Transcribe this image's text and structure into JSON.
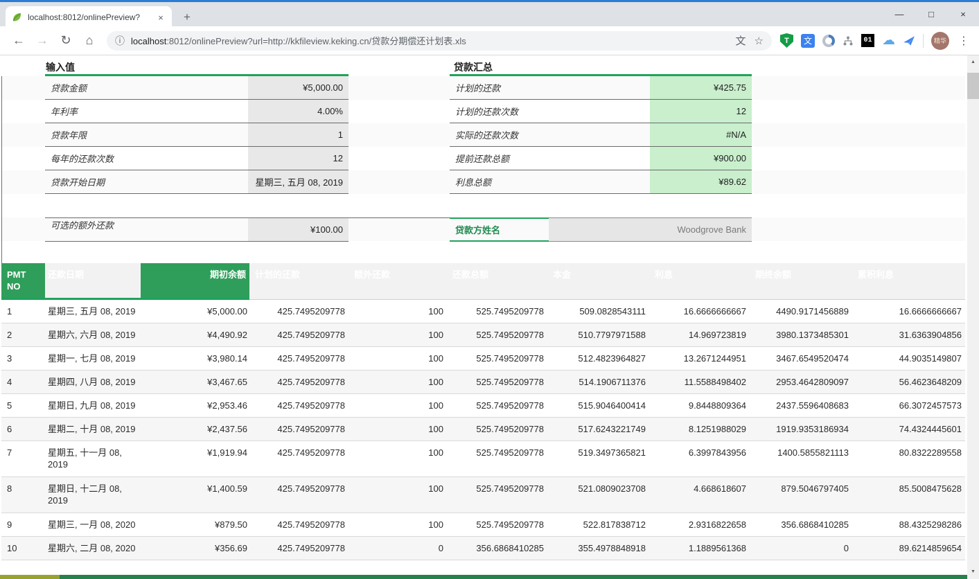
{
  "window": {
    "tab_title": "localhost:8012/onlinePreview?",
    "icons": {
      "new_tab": "+",
      "tab_close": "×",
      "minimize": "—",
      "maximize": "□",
      "close": "×"
    }
  },
  "toolbar": {
    "icons": {
      "back": "←",
      "forward": "→",
      "refresh": "↻",
      "home": "⌂",
      "info": "ⓘ",
      "translate_page": "文",
      "star": "☆",
      "shield": "T",
      "translate_ext": "文",
      "counter": "01",
      "cloud": "☁",
      "menu": "⋮",
      "scroll_up": "▲",
      "scroll_down": "▼"
    },
    "url_host": "localhost",
    "url_rest": ":8012/onlinePreview?url=http://kkfileview.keking.cn/贷款分期偿还计划表.xls",
    "avatar_label": "精华"
  },
  "summary_left": {
    "title": "输入值",
    "rows": [
      {
        "label": "贷款金额",
        "value": "¥5,000.00"
      },
      {
        "label": "年利率",
        "value": "4.00%"
      },
      {
        "label": "贷款年限",
        "value": "1"
      },
      {
        "label": "每年的还款次数",
        "value": "12"
      },
      {
        "label": "贷款开始日期",
        "value": "星期三, 五月 08, 2019"
      }
    ],
    "extra": {
      "label": "可选的额外还款",
      "value": "¥100.00"
    }
  },
  "summary_right": {
    "title": "贷款汇总",
    "rows": [
      {
        "label": "计划的还款",
        "value": "¥425.75"
      },
      {
        "label": "计划的还款次数",
        "value": "12"
      },
      {
        "label": "实际的还款次数",
        "value": "#N/A"
      },
      {
        "label": "提前还款总额",
        "value": "¥900.00"
      },
      {
        "label": "利息总额",
        "value": "¥89.62"
      }
    ],
    "lender": {
      "label": "贷款方姓名",
      "value": "Woodgrove Bank"
    }
  },
  "schedule": {
    "headers": [
      "PMT NO",
      "还款日期",
      "期初余额",
      "计划的还款",
      "额外还款",
      "还款总额",
      "本金",
      "利息",
      "期终余额",
      "累积利息"
    ],
    "rows": [
      [
        "1",
        "星期三, 五月 08, 2019",
        "¥5,000.00",
        "425.7495209778",
        "100",
        "525.7495209778",
        "509.0828543111",
        "16.6666666667",
        "4490.9171456889",
        "16.6666666667"
      ],
      [
        "2",
        "星期六, 六月 08, 2019",
        "¥4,490.92",
        "425.7495209778",
        "100",
        "525.7495209778",
        "510.7797971588",
        "14.969723819",
        "3980.1373485301",
        "31.6363904856"
      ],
      [
        "3",
        "星期一, 七月 08, 2019",
        "¥3,980.14",
        "425.7495209778",
        "100",
        "525.7495209778",
        "512.4823964827",
        "13.2671244951",
        "3467.6549520474",
        "44.9035149807"
      ],
      [
        "4",
        "星期四, 八月 08, 2019",
        "¥3,467.65",
        "425.7495209778",
        "100",
        "525.7495209778",
        "514.1906711376",
        "11.5588498402",
        "2953.4642809097",
        "56.4623648209"
      ],
      [
        "5",
        "星期日, 九月 08, 2019",
        "¥2,953.46",
        "425.7495209778",
        "100",
        "525.7495209778",
        "515.9046400414",
        "9.8448809364",
        "2437.5596408683",
        "66.3072457573"
      ],
      [
        "6",
        "星期二, 十月 08, 2019",
        "¥2,437.56",
        "425.7495209778",
        "100",
        "525.7495209778",
        "517.6243221749",
        "8.1251988029",
        "1919.9353186934",
        "74.4324445601"
      ],
      [
        "7",
        "星期五, 十一月 08, 2019",
        "¥1,919.94",
        "425.7495209778",
        "100",
        "525.7495209778",
        "519.3497365821",
        "6.3997843956",
        "1400.5855821113",
        "80.8322289558"
      ],
      [
        "8",
        "星期日, 十二月 08, 2019",
        "¥1,400.59",
        "425.7495209778",
        "100",
        "525.7495209778",
        "521.0809023708",
        "4.668618607",
        "879.5046797405",
        "85.5008475628"
      ],
      [
        "9",
        "星期三, 一月 08, 2020",
        "¥879.50",
        "425.7495209778",
        "100",
        "525.7495209778",
        "522.817838712",
        "2.9316822658",
        "356.6868410285",
        "88.4325298286"
      ],
      [
        "10",
        "星期六, 二月 08, 2020",
        "¥356.69",
        "425.7495209778",
        "0",
        "356.6868410285",
        "355.4978848918",
        "1.1889561368",
        "0",
        "89.6214859654"
      ]
    ]
  },
  "colors": {
    "accent_green": "#2f9e5b",
    "underline_green": "#1fa35c",
    "light_green_cell": "#c9efcd",
    "grey_cell": "#e8e8e8",
    "titlebar_blue": "#2b7cd3"
  }
}
